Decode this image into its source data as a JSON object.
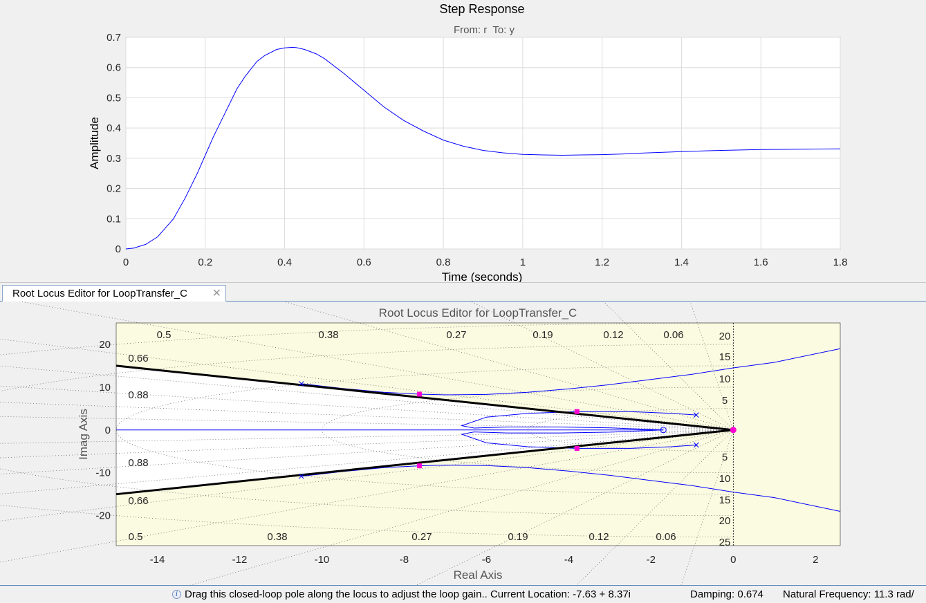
{
  "chart_data": [
    {
      "type": "line",
      "title": "Step Response",
      "subtitle": "From: r  To: y",
      "xlabel": "Time (seconds)",
      "ylabel": "Amplitude",
      "xlim": [
        0,
        1.8
      ],
      "ylim": [
        0,
        0.7
      ],
      "x_ticks": [
        "0",
        "0.2",
        "0.4",
        "0.6",
        "0.8",
        "1",
        "1.2",
        "1.4",
        "1.6",
        "1.8"
      ],
      "y_ticks": [
        "0",
        "0.1",
        "0.2",
        "0.3",
        "0.4",
        "0.5",
        "0.6",
        "0.7"
      ],
      "grid": true,
      "series": [
        {
          "color": "#0000ff",
          "x": [
            0,
            0.02,
            0.05,
            0.08,
            0.1,
            0.12,
            0.15,
            0.18,
            0.2,
            0.22,
            0.25,
            0.28,
            0.3,
            0.33,
            0.35,
            0.38,
            0.4,
            0.42,
            0.43,
            0.45,
            0.48,
            0.5,
            0.55,
            0.6,
            0.65,
            0.7,
            0.75,
            0.8,
            0.85,
            0.9,
            0.95,
            1.0,
            1.05,
            1.1,
            1.15,
            1.2,
            1.25,
            1.3,
            1.4,
            1.5,
            1.6,
            1.7,
            1.8
          ],
          "y": [
            0,
            0.003,
            0.015,
            0.04,
            0.07,
            0.1,
            0.17,
            0.25,
            0.31,
            0.37,
            0.45,
            0.53,
            0.57,
            0.62,
            0.64,
            0.66,
            0.665,
            0.667,
            0.666,
            0.66,
            0.645,
            0.63,
            0.58,
            0.525,
            0.47,
            0.425,
            0.39,
            0.36,
            0.34,
            0.326,
            0.318,
            0.313,
            0.311,
            0.31,
            0.311,
            0.312,
            0.314,
            0.317,
            0.322,
            0.326,
            0.329,
            0.33,
            0.331
          ]
        }
      ]
    },
    {
      "type": "scatter",
      "title": "Root Locus Editor for LoopTransfer_C",
      "xlabel": "Real Axis",
      "ylabel": "Imag Axis",
      "xlim": [
        -15,
        2.6
      ],
      "ylim": [
        -27,
        25
      ],
      "x_ticks": [
        "-14",
        "-12",
        "-10",
        "-8",
        "-6",
        "-4",
        "-2",
        "0",
        "2"
      ],
      "y_ticks": [
        "20",
        "10",
        "0",
        "-10",
        "-20"
      ],
      "damping_labels": [
        "0.5",
        "0.38",
        "0.27",
        "0.19",
        "0.12",
        "0.06",
        "0.66",
        "0.88"
      ],
      "frequency_labels": [
        "20",
        "15",
        "10",
        "5",
        "25"
      ],
      "open_loop_poles": [
        [
          -10.5,
          10.8
        ],
        [
          -10.5,
          -10.8
        ],
        [
          -0.9,
          3.5
        ],
        [
          -0.9,
          -3.5
        ]
      ],
      "open_loop_zeros": [
        [
          -1.7,
          0
        ]
      ],
      "closed_loop_poles": [
        [
          -7.63,
          8.37
        ],
        [
          -7.63,
          -8.37
        ],
        [
          -3.8,
          4.3
        ],
        [
          -3.8,
          -4.3
        ],
        [
          0,
          0
        ]
      ],
      "branches": [
        {
          "x": [
            -10.5,
            -9.5,
            -8.5,
            -7.63,
            -7.0,
            -6.0,
            -5.0,
            -4.0,
            -3.0,
            -2.0,
            -1.0,
            0,
            1.0,
            2.6
          ],
          "y": [
            10.8,
            9.7,
            8.8,
            8.37,
            8.2,
            8.3,
            8.8,
            9.6,
            10.6,
            11.8,
            13.0,
            14.5,
            15.8,
            19.0
          ]
        },
        {
          "x": [
            -10.5,
            -9.5,
            -8.5,
            -7.63,
            -7.0,
            -6.0,
            -5.0,
            -4.0,
            -3.0,
            -2.0,
            -1.0,
            0,
            1.0,
            2.6
          ],
          "y": [
            -10.8,
            -9.7,
            -8.8,
            -8.37,
            -8.2,
            -8.3,
            -8.8,
            -9.6,
            -10.6,
            -11.8,
            -13.0,
            -14.5,
            -15.8,
            -19.0
          ]
        },
        {
          "x": [
            -0.9,
            -1.5,
            -2.5,
            -3.8,
            -5.0,
            -6.0,
            -6.6,
            -6.3,
            -5.5,
            -4.2,
            -3.0,
            -2.2,
            -1.7
          ],
          "y": [
            3.5,
            3.9,
            4.3,
            4.3,
            3.9,
            3.0,
            1.0,
            0.45,
            0.7,
            0.7,
            0.5,
            0.2,
            0
          ]
        },
        {
          "x": [
            -0.9,
            -1.5,
            -2.5,
            -3.8,
            -5.0,
            -6.0,
            -6.6,
            -6.3,
            -5.5,
            -4.2,
            -3.0,
            -2.2,
            -1.7
          ],
          "y": [
            -3.5,
            -3.9,
            -4.3,
            -4.3,
            -3.9,
            -3.0,
            -1.0,
            -0.45,
            -0.7,
            -0.7,
            -0.5,
            -0.2,
            0
          ]
        },
        {
          "x": [
            -15,
            -1.7
          ],
          "y": [
            0,
            0
          ]
        }
      ],
      "damping_lines": [
        {
          "x": [
            -15,
            0
          ],
          "y": [
            15.0,
            0
          ]
        },
        {
          "x": [
            -15,
            0
          ],
          "y": [
            -15.0,
            0
          ]
        }
      ]
    }
  ],
  "tab": {
    "label": "Root Locus Editor for LoopTransfer_C",
    "close": "✕"
  },
  "status": {
    "info_icon": "i",
    "message": "Drag this closed-loop pole along the locus to adjust the loop gain.. Current Location: -7.63 + 8.37i",
    "damping": "Damping: 0.674",
    "frequency": "Natural Frequency: 11.3 rad/"
  },
  "colors": {
    "locus": "#0000ff",
    "marker": "#ff00d2",
    "plot_bg": "#fbfbe1"
  }
}
